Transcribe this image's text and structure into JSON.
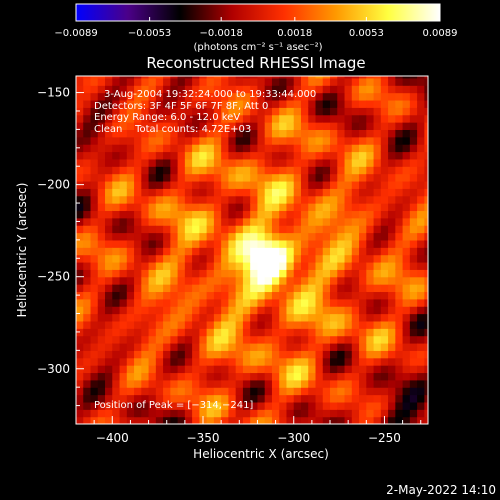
{
  "chart_data": {
    "type": "heatmap",
    "title": "Reconstructed RHESSI Image",
    "xlabel": "Heliocentric X (arcsec)",
    "ylabel": "Heliocentric Y (arcsec)",
    "xlim": [
      -420,
      -226
    ],
    "ylim": [
      -330,
      -141
    ],
    "x_ticks": [
      -400,
      -350,
      -300,
      -250
    ],
    "y_ticks": [
      -150,
      -200,
      -250,
      -300
    ],
    "x_tick_labels": [
      "−400",
      "−350",
      "−300",
      "−250"
    ],
    "y_tick_labels": [
      "−150",
      "−200",
      "−250",
      "−300"
    ],
    "colorbar": {
      "range": [
        -0.0089,
        0.0089
      ],
      "ticks": [
        -0.0089,
        -0.0053,
        -0.0018,
        0.0018,
        0.0053,
        0.0089
      ],
      "tick_labels": [
        "−0.0089",
        "−0.0053",
        "−0.0018",
        "0.0018",
        "0.0053",
        "0.0089"
      ],
      "unit_label": "(photons cm⁻² s⁻¹ asec⁻²)",
      "colors": [
        "#0000ff",
        "#4b0088",
        "#000000",
        "#b00000",
        "#ff3000",
        "#ff9900",
        "#ffff40",
        "#ffffff"
      ]
    },
    "peak": {
      "x": -314,
      "y": -241,
      "value": 0.0089
    },
    "annotations": {
      "time_range": "3-Aug-2004 19:32:24.000 to 19:33:44.000",
      "detectors": "Detectors: 3F 4F 5F 6F 7F 8F, Att 0",
      "energy_range": "Energy Range: 6.0 - 12.0 keV",
      "method_counts": "Clean    Total counts: 4.72E+03",
      "peak_position": "Position of Peak = [−314,−241]"
    }
  },
  "footer": {
    "date": "2-May-2022 14:10"
  }
}
